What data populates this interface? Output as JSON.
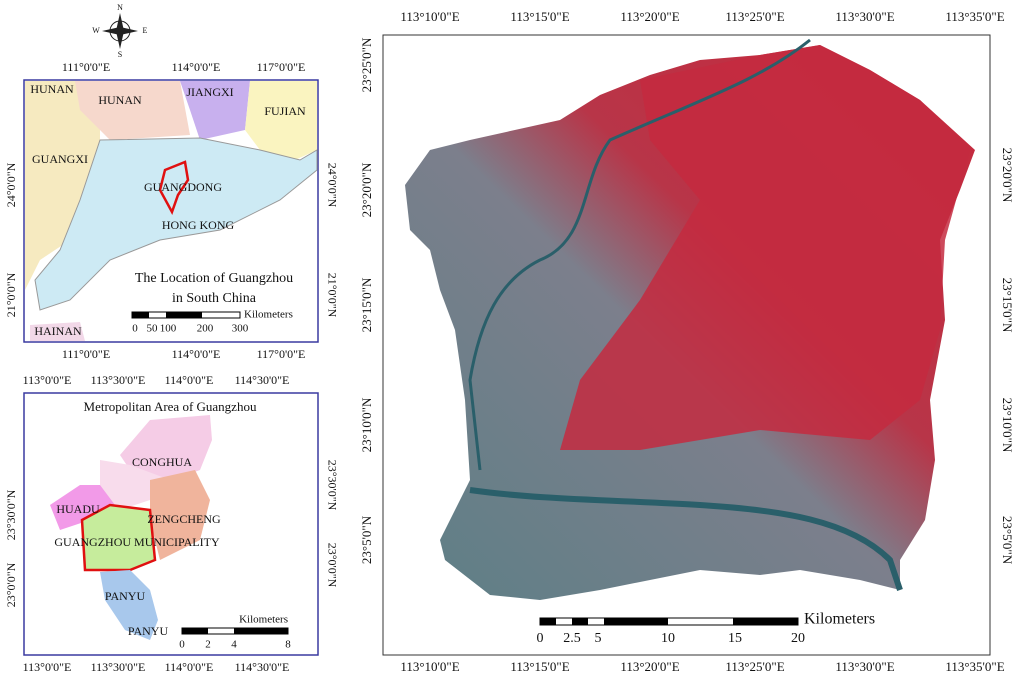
{
  "compass": {
    "n": "N",
    "e": "E",
    "s": "S",
    "w": "W"
  },
  "location_map": {
    "top_labels": [
      "111°0'0\"E",
      "114°0'0\"E",
      "117°0'0\"E"
    ],
    "bottom_labels": [
      "111°0'0\"E",
      "114°0'0\"E",
      "117°0'0\"E"
    ],
    "left_labels": [
      "24°0'0\"N",
      "21°0'0\"N"
    ],
    "right_labels": [
      "24°0'0\"N",
      "21°0'0\"N"
    ],
    "regions": [
      "HUNAN",
      "HUNAN",
      "JIANGXI",
      "FUJIAN",
      "GUANGXI",
      "GUANGDONG",
      "HONG KONG",
      "HAINAN"
    ],
    "title_lines": [
      "The Location of Guangzhou",
      "in South China"
    ],
    "scale": {
      "ticks": [
        "0",
        "50",
        "100",
        "200",
        "300"
      ],
      "unit": "Kilometers"
    }
  },
  "metro_map": {
    "title": "Metropolitan Area of Guangzhou",
    "top_labels": [
      "113°0'0\"E",
      "113°30'0\"E",
      "114°0'0\"E",
      "114°30'0\"E"
    ],
    "bottom_labels": [
      "113°0'0\"E",
      "113°30'0\"E",
      "114°0'0\"E",
      "114°30'0\"E"
    ],
    "left_labels": [
      "23°30'0\"N",
      "23°0'0\"N"
    ],
    "right_labels": [
      "23°30'0\"N",
      "23°0'0\"N"
    ],
    "regions": [
      "CONGHUA",
      "HUADU",
      "ZENGCHENG",
      "GUANGZHOU MUNICIPALITY",
      "PANYU",
      "PANYU"
    ],
    "scale": {
      "ticks": [
        "0",
        "2",
        "4",
        "8"
      ],
      "unit": "Kilometers"
    }
  },
  "main_map": {
    "top_labels": [
      "113°10'0\"E",
      "113°15'0\"E",
      "113°20'0\"E",
      "113°25'0\"E",
      "113°30'0\"E",
      "113°35'0\"E"
    ],
    "bottom_labels": [
      "113°10'0\"E",
      "113°15'0\"E",
      "113°20'0\"E",
      "113°25'0\"E",
      "113°30'0\"E",
      "113°35'0\"E"
    ],
    "left_labels": [
      "23°25'0\"N",
      "23°20'0\"N",
      "23°15'0\"N",
      "23°10'0\"N",
      "23°5'0\"N"
    ],
    "right_labels": [
      "23°20'0\"N",
      "23°15'0\"N",
      "23°10'0\"N",
      "23°5'0\"N"
    ],
    "scale": {
      "ticks": [
        "0",
        "2.5",
        "5",
        "10",
        "15",
        "20"
      ],
      "unit": "Kilometers"
    }
  }
}
